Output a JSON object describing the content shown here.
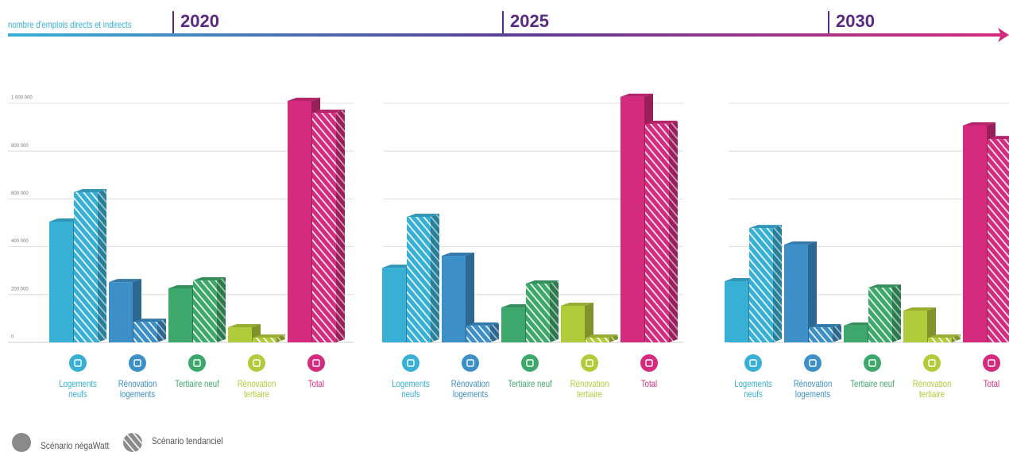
{
  "header": {
    "subtitle": "nombre d'emplois directs et indirects"
  },
  "legend": [
    "Scénario négaWatt",
    "Scénario tendanciel"
  ],
  "chart_data": [
    {
      "type": "bar",
      "title": "2020",
      "categories": [
        "Logements neufs",
        "Rénovation logements",
        "Tertiaire neuf",
        "Rénovation tertiaire",
        "Total"
      ],
      "colors": [
        "#38b0d6",
        "#3d8fc8",
        "#3ea86c",
        "#b2cb3a",
        "#d52b7e"
      ],
      "series": [
        {
          "hatch": false,
          "values": [
            505000,
            252000,
            226000,
            63000,
            1010000
          ]
        },
        {
          "hatch": true,
          "values": [
            628000,
            86000,
            259000,
            20000,
            960000
          ]
        }
      ],
      "ylim": [
        0,
        1000000
      ],
      "yticks": [
        0,
        {
          "value": 200000,
          "label": "200 000"
        },
        {
          "value": 400000,
          "label": "400 000"
        },
        {
          "value": 600000,
          "label": "600 000"
        },
        {
          "value": 800000,
          "label": "800 000"
        },
        {
          "value": 1000000,
          "label": "1 000 000"
        }
      ]
    },
    {
      "type": "bar",
      "title": "2025",
      "categories": [
        "Logements neufs",
        "Rénovation logements",
        "Tertiaire neuf",
        "Rénovation tertiaire",
        "Total"
      ],
      "colors": [
        "#38b0d6",
        "#3d8fc8",
        "#3ea86c",
        "#b2cb3a",
        "#d52b7e"
      ],
      "series": [
        {
          "hatch": false,
          "values": [
            312000,
            362000,
            146000,
            153000,
            1027000
          ]
        },
        {
          "hatch": true,
          "values": [
            525000,
            70000,
            246000,
            20000,
            914000
          ]
        }
      ],
      "ylim": [
        0,
        1000000
      ],
      "yticks": [
        0,
        200000,
        400000,
        600000,
        800000,
        1000000
      ]
    },
    {
      "type": "bar",
      "title": "2030",
      "categories": [
        "Logements neufs",
        "Rénovation logements",
        "Tertiaire neuf",
        "Rénovation tertiaire",
        "Total"
      ],
      "colors": [
        "#38b0d6",
        "#3d8fc8",
        "#3ea86c",
        "#b2cb3a",
        "#d52b7e"
      ],
      "series": [
        {
          "hatch": false,
          "values": [
            256000,
            409000,
            70000,
            133000,
            907000
          ]
        },
        {
          "hatch": true,
          "values": [
            478000,
            63000,
            229000,
            20000,
            850000
          ]
        }
      ],
      "ylim": [
        0,
        1000000
      ],
      "yticks": [
        0,
        200000,
        400000,
        600000,
        800000,
        1000000
      ]
    }
  ]
}
